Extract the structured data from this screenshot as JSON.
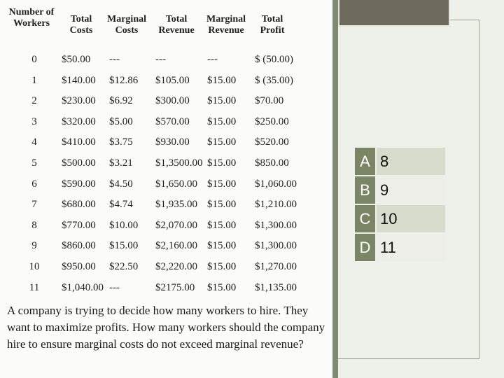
{
  "table": {
    "headers": {
      "workers": "Number of Workers",
      "total_costs": "Total Costs",
      "marginal_costs": "Marginal Costs",
      "total_revenue": "Total Revenue",
      "marginal_revenue": "Marginal Revenue",
      "total_profit": "Total Profit"
    },
    "rows": [
      [
        "0",
        "$50.00",
        "---",
        "---",
        "---",
        "$ (50.00)"
      ],
      [
        "1",
        "$140.00",
        "$12.86",
        "$105.00",
        "$15.00",
        "$ (35.00)"
      ],
      [
        "2",
        "$230.00",
        "$6.92",
        "$300.00",
        "$15.00",
        "$70.00"
      ],
      [
        "3",
        "$320.00",
        "$5.00",
        "$570.00",
        "$15.00",
        "$250.00"
      ],
      [
        "4",
        "$410.00",
        "$3.75",
        "$930.00",
        "$15.00",
        "$520.00"
      ],
      [
        "5",
        "$500.00",
        "$3.21",
        "$1,3500.00",
        "$15.00",
        "$850.00"
      ],
      [
        "6",
        "$590.00",
        "$4.50",
        "$1,650.00",
        "$15.00",
        "$1,060.00"
      ],
      [
        "7",
        "$680.00",
        "$4.74",
        "$1,935.00",
        "$15.00",
        "$1,210.00"
      ],
      [
        "8",
        "$770.00",
        "$10.00",
        "$2,070.00",
        "$15.00",
        "$1,300.00"
      ],
      [
        "9",
        "$860.00",
        "$15.00",
        "$2,160.00",
        "$15.00",
        "$1,300.00"
      ],
      [
        "10",
        "$950.00",
        "$22.50",
        "$2,220.00",
        "$15.00",
        "$1,270.00"
      ],
      [
        "11",
        "$1,040.00",
        "---",
        "$2175.00",
        "$15.00",
        "$1,135.00"
      ]
    ]
  },
  "question": "A company is trying to decide how many workers to hire. They want to maximize profits. How many workers should the company hire to ensure marginal costs do not exceed marginal revenue?",
  "answers": [
    {
      "letter": "A",
      "value": "8"
    },
    {
      "letter": "B",
      "value": "9"
    },
    {
      "letter": "C",
      "value": "10"
    },
    {
      "letter": "D",
      "value": "11"
    }
  ],
  "colors": {
    "accent_green": "#7a8566",
    "top_box": "#6e6a5e",
    "side_background": "#eef0ea"
  }
}
